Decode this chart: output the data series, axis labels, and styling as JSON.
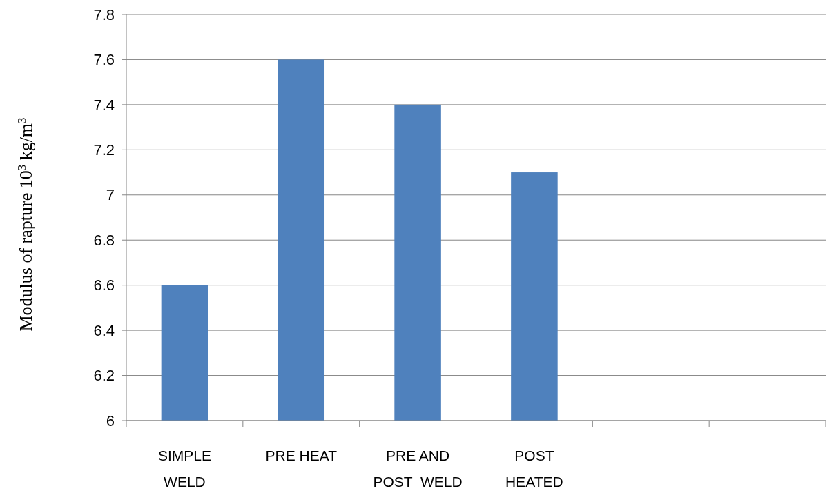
{
  "chart_data": {
    "type": "bar",
    "ylabel": "Modulus of rapture 10$^{3}$ kg/m$^{3}$",
    "categories": [
      "SIMPLE\nWELD",
      "PRE HEAT",
      "PRE AND\nPOST  WELD",
      "POST\nHEATED",
      null,
      null
    ],
    "values": [
      6.6,
      7.6,
      7.4,
      7.1,
      null,
      null
    ],
    "color": "#4f81bd",
    "ylim": [
      6,
      7.8
    ],
    "yticks": [
      6,
      6.2,
      6.4,
      6.6,
      6.8,
      7,
      7.2,
      7.4,
      7.6,
      7.8
    ],
    "grid": "y"
  }
}
